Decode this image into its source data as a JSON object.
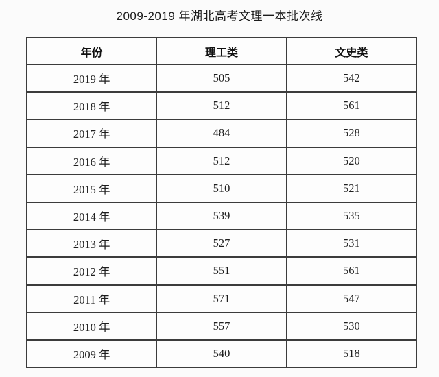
{
  "page": {
    "title": "2009-2019 年湖北高考文理一本批次线"
  },
  "table": {
    "headers": {
      "year": "年份",
      "science": "理工类",
      "arts": "文史类"
    },
    "rows": [
      {
        "year": "2019 年",
        "science": "505",
        "arts": "542"
      },
      {
        "year": "2018 年",
        "science": "512",
        "arts": "561"
      },
      {
        "year": "2017 年",
        "science": "484",
        "arts": "528"
      },
      {
        "year": "2016 年",
        "science": "512",
        "arts": "520"
      },
      {
        "year": "2015 年",
        "science": "510",
        "arts": "521"
      },
      {
        "year": "2014 年",
        "science": "539",
        "arts": "535"
      },
      {
        "year": "2013 年",
        "science": "527",
        "arts": "531"
      },
      {
        "year": "2012 年",
        "science": "551",
        "arts": "561"
      },
      {
        "year": "2011 年",
        "science": "571",
        "arts": "547"
      },
      {
        "year": "2010 年",
        "science": "557",
        "arts": "530"
      },
      {
        "year": "2009 年",
        "science": "540",
        "arts": "518"
      }
    ]
  },
  "colors": {
    "background": "#fbfbfb",
    "border": "#3c3c3c",
    "text": "#1e1e1e"
  },
  "chart_data": {
    "type": "table",
    "title": "2009-2019 年湖北高考文理一本批次线",
    "columns": [
      "年份",
      "理工类",
      "文史类"
    ],
    "rows": [
      [
        "2019 年",
        505,
        542
      ],
      [
        "2018 年",
        512,
        561
      ],
      [
        "2017 年",
        484,
        528
      ],
      [
        "2016 年",
        512,
        520
      ],
      [
        "2015 年",
        510,
        521
      ],
      [
        "2014 年",
        539,
        535
      ],
      [
        "2013 年",
        527,
        531
      ],
      [
        "2012 年",
        551,
        561
      ],
      [
        "2011 年",
        571,
        547
      ],
      [
        "2010 年",
        557,
        530
      ],
      [
        "2009 年",
        540,
        518
      ]
    ],
    "series": [
      {
        "name": "理工类",
        "values": [
          505,
          512,
          484,
          512,
          510,
          539,
          527,
          551,
          571,
          557,
          540
        ]
      },
      {
        "name": "文史类",
        "values": [
          542,
          561,
          528,
          520,
          521,
          535,
          531,
          561,
          547,
          530,
          518
        ]
      }
    ],
    "categories": [
      "2019",
      "2018",
      "2017",
      "2016",
      "2015",
      "2014",
      "2013",
      "2012",
      "2011",
      "2010",
      "2009"
    ]
  }
}
